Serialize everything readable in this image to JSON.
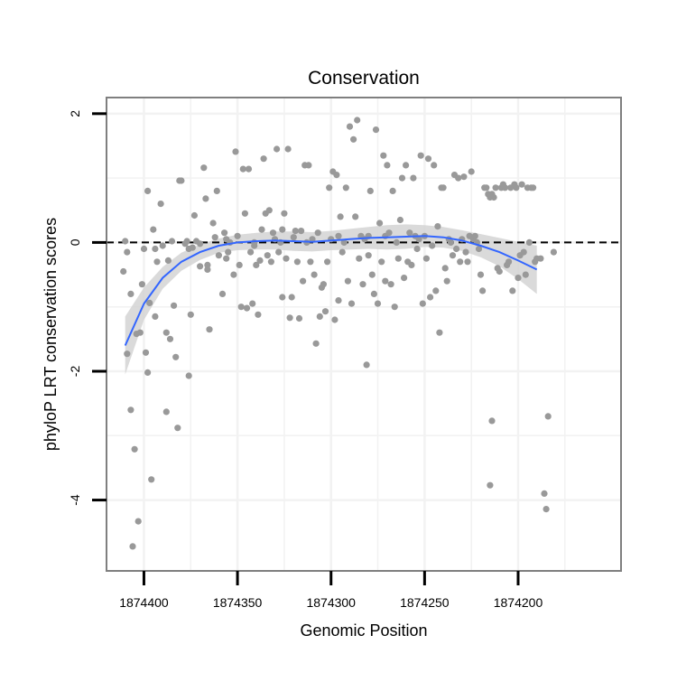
{
  "chart_data": {
    "type": "scatter",
    "title": "Conservation",
    "xlabel": "Genomic Position",
    "ylabel": "phyloP LRT conservation scores",
    "x_reversed": true,
    "xlim": [
      1874420,
      1874145
    ],
    "ylim": [
      -5.1,
      2.25
    ],
    "x_ticks": [
      1874400,
      1874350,
      1874300,
      1874250,
      1874200
    ],
    "y_ticks": [
      -4,
      -2,
      0,
      2
    ],
    "hline": 0,
    "grid": true,
    "colors": {
      "points": "#999999",
      "smooth": "#3366ff",
      "band": "#d3d3d3",
      "panel_border": "#7f7f7f",
      "grid": "#f2f2f2"
    },
    "points": [
      [
        1874410,
        0.02
      ],
      [
        1874411,
        -0.45
      ],
      [
        1874409,
        -1.73
      ],
      [
        1874409,
        -0.15
      ],
      [
        1874407,
        -2.6
      ],
      [
        1874406,
        -4.72
      ],
      [
        1874405,
        -3.21
      ],
      [
        1874403,
        -4.33
      ],
      [
        1874404,
        -1.42
      ],
      [
        1874402,
        -1.4
      ],
      [
        1874401,
        -0.65
      ],
      [
        1874400,
        -0.1
      ],
      [
        1874399,
        -1.71
      ],
      [
        1874398,
        0.8
      ],
      [
        1874398,
        -2.02
      ],
      [
        1874397,
        -0.94
      ],
      [
        1874396,
        -3.68
      ],
      [
        1874395,
        0.2
      ],
      [
        1874394,
        -0.1
      ],
      [
        1874393,
        -0.3
      ],
      [
        1874391,
        0.6
      ],
      [
        1874390,
        -0.05
      ],
      [
        1874388,
        -1.4
      ],
      [
        1874388,
        -2.63
      ],
      [
        1874387,
        -0.28
      ],
      [
        1874386,
        -1.5
      ],
      [
        1874385,
        0.02
      ],
      [
        1874384,
        -0.98
      ],
      [
        1874383,
        -1.78
      ],
      [
        1874382,
        -2.88
      ],
      [
        1874381,
        0.96
      ],
      [
        1874380,
        0.96
      ],
      [
        1874378,
        -0.02
      ],
      [
        1874377,
        0.02
      ],
      [
        1874376,
        -2.07
      ],
      [
        1874375,
        -1.12
      ],
      [
        1874374,
        -0.08
      ],
      [
        1874373,
        0.42
      ],
      [
        1874372,
        0.02
      ],
      [
        1874370,
        -0.02
      ],
      [
        1874370,
        -0.37
      ],
      [
        1874368,
        1.16
      ],
      [
        1874367,
        0.68
      ],
      [
        1874366,
        -0.42
      ],
      [
        1874365,
        -1.35
      ],
      [
        1874363,
        0.3
      ],
      [
        1874362,
        0.08
      ],
      [
        1874361,
        0.8
      ],
      [
        1874360,
        -0.2
      ],
      [
        1874358,
        -0.8
      ],
      [
        1874357,
        0.15
      ],
      [
        1874356,
        0.05
      ],
      [
        1874355,
        -0.15
      ],
      [
        1874354,
        0.0
      ],
      [
        1874352,
        -0.5
      ],
      [
        1874351,
        1.41
      ],
      [
        1874350,
        0.1
      ],
      [
        1874349,
        -0.35
      ],
      [
        1874348,
        -1.0
      ],
      [
        1874347,
        1.14
      ],
      [
        1874346,
        0.45
      ],
      [
        1874345,
        -1.02
      ],
      [
        1874344,
        1.14
      ],
      [
        1874343,
        -0.15
      ],
      [
        1874342,
        -0.95
      ],
      [
        1874341,
        -0.05
      ],
      [
        1874340,
        -0.35
      ],
      [
        1874339,
        -1.12
      ],
      [
        1874338,
        -0.28
      ],
      [
        1874337,
        0.2
      ],
      [
        1874336,
        1.3
      ],
      [
        1874335,
        0.45
      ],
      [
        1874334,
        -0.2
      ],
      [
        1874333,
        0.5
      ],
      [
        1874332,
        -0.3
      ],
      [
        1874331,
        0.15
      ],
      [
        1874330,
        0.05
      ],
      [
        1874329,
        1.45
      ],
      [
        1874328,
        -0.15
      ],
      [
        1874327,
        0.0
      ],
      [
        1874326,
        -0.85
      ],
      [
        1874325,
        0.45
      ],
      [
        1874324,
        -0.25
      ],
      [
        1874323,
        1.45
      ],
      [
        1874322,
        -1.17
      ],
      [
        1874321,
        -0.85
      ],
      [
        1874320,
        0.08
      ],
      [
        1874319,
        0.18
      ],
      [
        1874318,
        -0.3
      ],
      [
        1874317,
        -1.18
      ],
      [
        1874316,
        0.18
      ],
      [
        1874315,
        -0.6
      ],
      [
        1874314,
        1.2
      ],
      [
        1874313,
        0.0
      ],
      [
        1874312,
        1.2
      ],
      [
        1874311,
        -0.3
      ],
      [
        1874310,
        0.05
      ],
      [
        1874309,
        -0.5
      ],
      [
        1874308,
        -1.57
      ],
      [
        1874307,
        0.15
      ],
      [
        1874306,
        -1.15
      ],
      [
        1874305,
        -0.7
      ],
      [
        1874304,
        -0.65
      ],
      [
        1874303,
        -1.07
      ],
      [
        1874302,
        -0.3
      ],
      [
        1874301,
        0.85
      ],
      [
        1874300,
        0.05
      ],
      [
        1874299,
        1.1
      ],
      [
        1874298,
        -1.2
      ],
      [
        1874297,
        1.05
      ],
      [
        1874296,
        -0.9
      ],
      [
        1874295,
        0.4
      ],
      [
        1874294,
        -0.15
      ],
      [
        1874293,
        0.0
      ],
      [
        1874292,
        0.85
      ],
      [
        1874291,
        -0.6
      ],
      [
        1874290,
        1.8
      ],
      [
        1874289,
        -0.95
      ],
      [
        1874288,
        1.6
      ],
      [
        1874287,
        0.4
      ],
      [
        1874286,
        1.9
      ],
      [
        1874285,
        -0.25
      ],
      [
        1874284,
        0.1
      ],
      [
        1874283,
        -0.65
      ],
      [
        1874282,
        0.05
      ],
      [
        1874281,
        -1.9
      ],
      [
        1874280,
        -0.2
      ],
      [
        1874279,
        0.8
      ],
      [
        1874278,
        -0.5
      ],
      [
        1874277,
        -0.8
      ],
      [
        1874276,
        1.75
      ],
      [
        1874275,
        -0.95
      ],
      [
        1874274,
        0.3
      ],
      [
        1874273,
        -0.3
      ],
      [
        1874272,
        1.35
      ],
      [
        1874271,
        -0.6
      ],
      [
        1874270,
        1.2
      ],
      [
        1874269,
        0.15
      ],
      [
        1874268,
        -0.65
      ],
      [
        1874267,
        0.8
      ],
      [
        1874266,
        -1.0
      ],
      [
        1874265,
        0.0
      ],
      [
        1874264,
        -0.25
      ],
      [
        1874263,
        0.35
      ],
      [
        1874262,
        1.0
      ],
      [
        1874261,
        -0.55
      ],
      [
        1874260,
        1.2
      ],
      [
        1874259,
        -0.3
      ],
      [
        1874258,
        0.15
      ],
      [
        1874257,
        -0.35
      ],
      [
        1874256,
        1.0
      ],
      [
        1874255,
        0.1
      ],
      [
        1874254,
        -0.1
      ],
      [
        1874253,
        0.05
      ],
      [
        1874252,
        1.35
      ],
      [
        1874251,
        -0.95
      ],
      [
        1874250,
        0.1
      ],
      [
        1874249,
        -0.25
      ],
      [
        1874248,
        1.3
      ],
      [
        1874247,
        -0.85
      ],
      [
        1874246,
        -0.05
      ],
      [
        1874245,
        1.2
      ],
      [
        1874244,
        -0.75
      ],
      [
        1874243,
        0.25
      ],
      [
        1874242,
        -1.4
      ],
      [
        1874241,
        0.85
      ],
      [
        1874240,
        0.85
      ],
      [
        1874239,
        -0.4
      ],
      [
        1874238,
        -0.6
      ],
      [
        1874237,
        0.05
      ],
      [
        1874236,
        0.0
      ],
      [
        1874235,
        -0.2
      ],
      [
        1874234,
        1.05
      ],
      [
        1874233,
        -0.1
      ],
      [
        1874232,
        1.0
      ],
      [
        1874231,
        -0.3
      ],
      [
        1874230,
        0.05
      ],
      [
        1874229,
        1.02
      ],
      [
        1874228,
        -0.15
      ],
      [
        1874227,
        -0.3
      ],
      [
        1874226,
        0.1
      ],
      [
        1874225,
        1.1
      ],
      [
        1874224,
        0.05
      ],
      [
        1874223,
        0.1
      ],
      [
        1874222,
        0.0
      ],
      [
        1874221,
        -0.1
      ],
      [
        1874220,
        -0.5
      ],
      [
        1874219,
        -0.75
      ],
      [
        1874218,
        0.85
      ],
      [
        1874217,
        0.85
      ],
      [
        1874216,
        0.75
      ],
      [
        1874215,
        0.7
      ],
      [
        1874214,
        0.75
      ],
      [
        1874213,
        0.7
      ],
      [
        1874212,
        0.85
      ],
      [
        1874211,
        -0.4
      ],
      [
        1874210,
        -0.45
      ],
      [
        1874209,
        0.85
      ],
      [
        1874208,
        0.9
      ],
      [
        1874207,
        0.85
      ],
      [
        1874206,
        -0.35
      ],
      [
        1874205,
        -0.3
      ],
      [
        1874204,
        0.85
      ],
      [
        1874203,
        -0.75
      ],
      [
        1874202,
        0.9
      ],
      [
        1874201,
        0.85
      ],
      [
        1874200,
        -0.55
      ],
      [
        1874199,
        -0.2
      ],
      [
        1874198,
        0.9
      ],
      [
        1874197,
        -0.15
      ],
      [
        1874196,
        -0.5
      ],
      [
        1874195,
        0.85
      ],
      [
        1874194,
        0.0
      ],
      [
        1874193,
        0.85
      ],
      [
        1874192,
        0.85
      ],
      [
        1874191,
        -0.3
      ],
      [
        1874190,
        -0.25
      ],
      [
        1874186,
        -3.9
      ],
      [
        1874185,
        -4.14
      ],
      [
        1874184,
        -2.7
      ],
      [
        1874215,
        -3.77
      ],
      [
        1874214,
        -2.77
      ],
      [
        1874188,
        -0.25
      ],
      [
        1874181,
        -0.15
      ],
      [
        1874366,
        -0.35
      ],
      [
        1874394,
        -1.15
      ],
      [
        1874407,
        -0.8
      ],
      [
        1874376,
        -0.1
      ],
      [
        1874326,
        0.2
      ],
      [
        1874280,
        0.1
      ],
      [
        1874271,
        0.1
      ],
      [
        1874296,
        0.1
      ],
      [
        1874341,
        0.0
      ],
      [
        1874356,
        -0.25
      ]
    ],
    "smooth": [
      [
        1874410,
        -1.6
      ],
      [
        1874400,
        -0.95
      ],
      [
        1874390,
        -0.55
      ],
      [
        1874380,
        -0.3
      ],
      [
        1874370,
        -0.15
      ],
      [
        1874360,
        -0.05
      ],
      [
        1874350,
        0.0
      ],
      [
        1874340,
        0.02
      ],
      [
        1874330,
        0.03
      ],
      [
        1874320,
        0.02
      ],
      [
        1874310,
        0.01
      ],
      [
        1874300,
        0.03
      ],
      [
        1874290,
        0.05
      ],
      [
        1874280,
        0.07
      ],
      [
        1874270,
        0.08
      ],
      [
        1874260,
        0.09
      ],
      [
        1874250,
        0.1
      ],
      [
        1874240,
        0.08
      ],
      [
        1874230,
        0.03
      ],
      [
        1874220,
        -0.05
      ],
      [
        1874210,
        -0.15
      ],
      [
        1874200,
        -0.28
      ],
      [
        1874190,
        -0.42
      ]
    ],
    "band_upper": [
      [
        1874410,
        -1.15
      ],
      [
        1874400,
        -0.7
      ],
      [
        1874390,
        -0.38
      ],
      [
        1874380,
        -0.16
      ],
      [
        1874370,
        -0.03
      ],
      [
        1874360,
        0.06
      ],
      [
        1874350,
        0.12
      ],
      [
        1874340,
        0.15
      ],
      [
        1874330,
        0.17
      ],
      [
        1874320,
        0.17
      ],
      [
        1874310,
        0.16
      ],
      [
        1874300,
        0.18
      ],
      [
        1874290,
        0.21
      ],
      [
        1874280,
        0.24
      ],
      [
        1874270,
        0.27
      ],
      [
        1874260,
        0.28
      ],
      [
        1874250,
        0.27
      ],
      [
        1874240,
        0.24
      ],
      [
        1874230,
        0.19
      ],
      [
        1874220,
        0.13
      ],
      [
        1874210,
        0.07
      ],
      [
        1874200,
        0.01
      ],
      [
        1874190,
        -0.05
      ]
    ],
    "band_lower": [
      [
        1874410,
        -2.05
      ],
      [
        1874400,
        -1.2
      ],
      [
        1874390,
        -0.72
      ],
      [
        1874380,
        -0.44
      ],
      [
        1874370,
        -0.27
      ],
      [
        1874360,
        -0.16
      ],
      [
        1874350,
        -0.12
      ],
      [
        1874340,
        -0.11
      ],
      [
        1874330,
        -0.11
      ],
      [
        1874320,
        -0.13
      ],
      [
        1874310,
        -0.14
      ],
      [
        1874300,
        -0.12
      ],
      [
        1874290,
        -0.11
      ],
      [
        1874280,
        -0.1
      ],
      [
        1874270,
        -0.11
      ],
      [
        1874260,
        -0.1
      ],
      [
        1874250,
        -0.07
      ],
      [
        1874240,
        -0.08
      ],
      [
        1874230,
        -0.13
      ],
      [
        1874220,
        -0.23
      ],
      [
        1874210,
        -0.37
      ],
      [
        1874200,
        -0.57
      ],
      [
        1874190,
        -0.8
      ]
    ]
  }
}
